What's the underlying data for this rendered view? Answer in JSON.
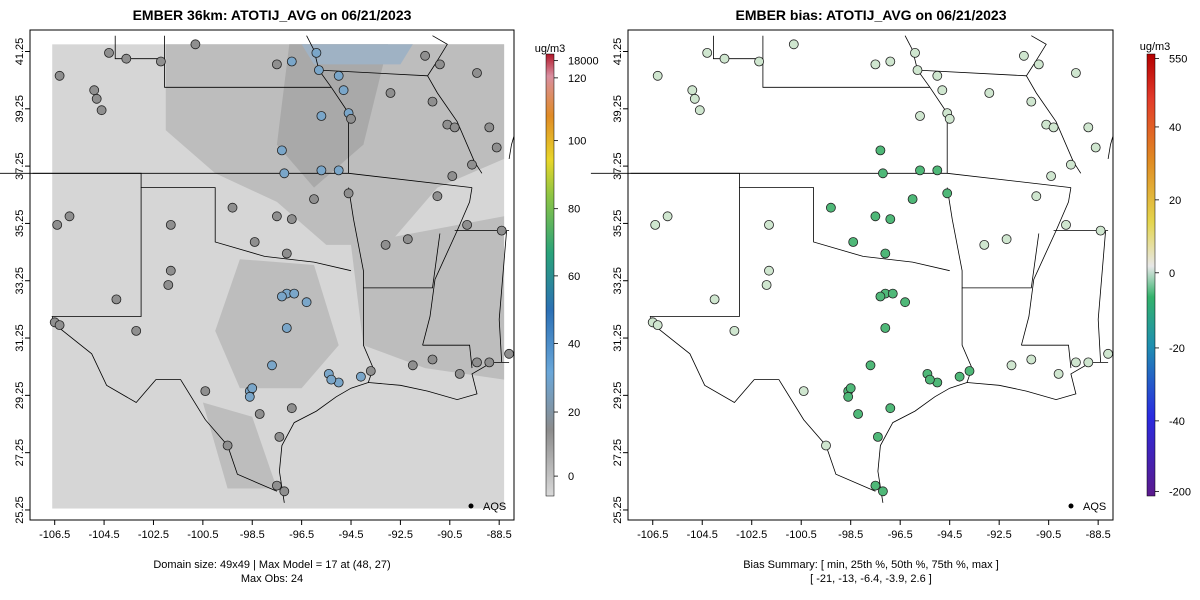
{
  "left_panel": {
    "title": "EMBER 36km: ATOTIJ_AVG on 06/21/2023",
    "colorbar_unit": "ug/m3",
    "colorbar_labels": [
      "18000",
      "120",
      "100",
      "80",
      "60",
      "40",
      "20",
      "0"
    ],
    "footer_line1": "Domain size: 49x49 | Max Model = 17 at (48, 27)",
    "footer_line2": "Max Obs: 24",
    "legend_label": "AQS"
  },
  "right_panel": {
    "title": "EMBER bias: ATOTIJ_AVG on 06/21/2023",
    "colorbar_unit": "ug/m3",
    "colorbar_labels": [
      "550",
      "40",
      "20",
      "0",
      "-20",
      "-40",
      "-200"
    ],
    "footer_line1": "Bias Summary: [ min, 25th %, 50th %, 75th %, max ]",
    "footer_line2": "[ -21,   -13,   -6.4,   -3.9,   2.6 ]",
    "legend_label": "AQS"
  },
  "axes": {
    "x_ticks": [
      "-106.5",
      "-104.5",
      "-102.5",
      "-100.5",
      "-98.5",
      "-96.5",
      "-94.5",
      "-92.5",
      "-90.5",
      "-88.5"
    ],
    "y_ticks": [
      "41.25",
      "39.25",
      "37.25",
      "35.25",
      "33.25",
      "31.25",
      "29.25",
      "27.25",
      "25.25"
    ]
  },
  "colors": {
    "panel_bg": "#d6d6d6",
    "model_dark": "#a9a9a9",
    "model_mid": "#bdbdbd",
    "obs_blue": "#7aa6c9",
    "obs_gray": "#8f8f8f",
    "bias_green": "#4fb878",
    "bias_light": "#cfe6cf"
  },
  "stations": [
    {
      "lon": -106.3,
      "lat": 40.4
    },
    {
      "lon": -104.9,
      "lat": 39.9
    },
    {
      "lon": -104.8,
      "lat": 39.6
    },
    {
      "lon": -104.6,
      "lat": 39.2
    },
    {
      "lon": -104.3,
      "lat": 41.2
    },
    {
      "lon": -103.6,
      "lat": 41.0
    },
    {
      "lon": -102.2,
      "lat": 40.9
    },
    {
      "lon": -100.8,
      "lat": 41.5
    },
    {
      "lon": -97.5,
      "lat": 40.8
    },
    {
      "lon": -96.9,
      "lat": 40.9
    },
    {
      "lon": -95.9,
      "lat": 41.2
    },
    {
      "lon": -95.8,
      "lat": 40.6
    },
    {
      "lon": -95.0,
      "lat": 40.4
    },
    {
      "lon": -94.8,
      "lat": 39.9
    },
    {
      "lon": -94.6,
      "lat": 39.1
    },
    {
      "lon": -94.5,
      "lat": 38.9
    },
    {
      "lon": -95.7,
      "lat": 39.0
    },
    {
      "lon": -97.3,
      "lat": 37.8
    },
    {
      "lon": -97.2,
      "lat": 37.0
    },
    {
      "lon": -95.7,
      "lat": 37.1
    },
    {
      "lon": -95.0,
      "lat": 37.1
    },
    {
      "lon": -92.9,
      "lat": 39.8
    },
    {
      "lon": -91.5,
      "lat": 41.1
    },
    {
      "lon": -90.9,
      "lat": 40.8
    },
    {
      "lon": -91.2,
      "lat": 39.5
    },
    {
      "lon": -90.6,
      "lat": 38.7
    },
    {
      "lon": -90.3,
      "lat": 38.6
    },
    {
      "lon": -89.4,
      "lat": 40.5
    },
    {
      "lon": -88.9,
      "lat": 38.6
    },
    {
      "lon": -88.6,
      "lat": 37.9
    },
    {
      "lon": -89.6,
      "lat": 37.3
    },
    {
      "lon": -90.4,
      "lat": 36.9
    },
    {
      "lon": -91.0,
      "lat": 36.2
    },
    {
      "lon": -89.8,
      "lat": 35.2
    },
    {
      "lon": -88.4,
      "lat": 35.0
    },
    {
      "lon": -92.2,
      "lat": 34.7
    },
    {
      "lon": -93.1,
      "lat": 34.5
    },
    {
      "lon": -94.6,
      "lat": 36.3
    },
    {
      "lon": -96.0,
      "lat": 36.1
    },
    {
      "lon": -96.9,
      "lat": 35.4
    },
    {
      "lon": -97.5,
      "lat": 35.5
    },
    {
      "lon": -98.4,
      "lat": 34.6
    },
    {
      "lon": -97.1,
      "lat": 34.2
    },
    {
      "lon": -99.3,
      "lat": 35.8
    },
    {
      "lon": -101.8,
      "lat": 35.2
    },
    {
      "lon": -101.8,
      "lat": 33.6
    },
    {
      "lon": -106.4,
      "lat": 35.2
    },
    {
      "lon": -105.9,
      "lat": 35.5
    },
    {
      "lon": -104.0,
      "lat": 32.6
    },
    {
      "lon": -106.5,
      "lat": 31.8
    },
    {
      "lon": -106.3,
      "lat": 31.7
    },
    {
      "lon": -103.2,
      "lat": 31.5
    },
    {
      "lon": -97.1,
      "lat": 32.8
    },
    {
      "lon": -96.8,
      "lat": 32.8
    },
    {
      "lon": -97.3,
      "lat": 32.7
    },
    {
      "lon": -96.3,
      "lat": 32.5
    },
    {
      "lon": -97.1,
      "lat": 31.6
    },
    {
      "lon": -97.7,
      "lat": 30.3
    },
    {
      "lon": -95.4,
      "lat": 30.0
    },
    {
      "lon": -95.0,
      "lat": 29.7
    },
    {
      "lon": -95.3,
      "lat": 29.8
    },
    {
      "lon": -94.1,
      "lat": 29.9
    },
    {
      "lon": -93.7,
      "lat": 30.1
    },
    {
      "lon": -92.0,
      "lat": 30.3
    },
    {
      "lon": -91.2,
      "lat": 30.5
    },
    {
      "lon": -90.1,
      "lat": 30.0
    },
    {
      "lon": -89.4,
      "lat": 30.4
    },
    {
      "lon": -88.9,
      "lat": 30.4
    },
    {
      "lon": -88.1,
      "lat": 30.7
    },
    {
      "lon": -98.6,
      "lat": 29.4
    },
    {
      "lon": -98.5,
      "lat": 29.5
    },
    {
      "lon": -98.6,
      "lat": 29.2
    },
    {
      "lon": -100.4,
      "lat": 29.4
    },
    {
      "lon": -99.5,
      "lat": 27.5
    },
    {
      "lon": -97.4,
      "lat": 27.8
    },
    {
      "lon": -97.5,
      "lat": 26.1
    },
    {
      "lon": -97.2,
      "lat": 25.9
    },
    {
      "lon": -96.9,
      "lat": 28.8
    },
    {
      "lon": -98.2,
      "lat": 28.6
    },
    {
      "lon": -101.9,
      "lat": 33.1
    }
  ]
}
